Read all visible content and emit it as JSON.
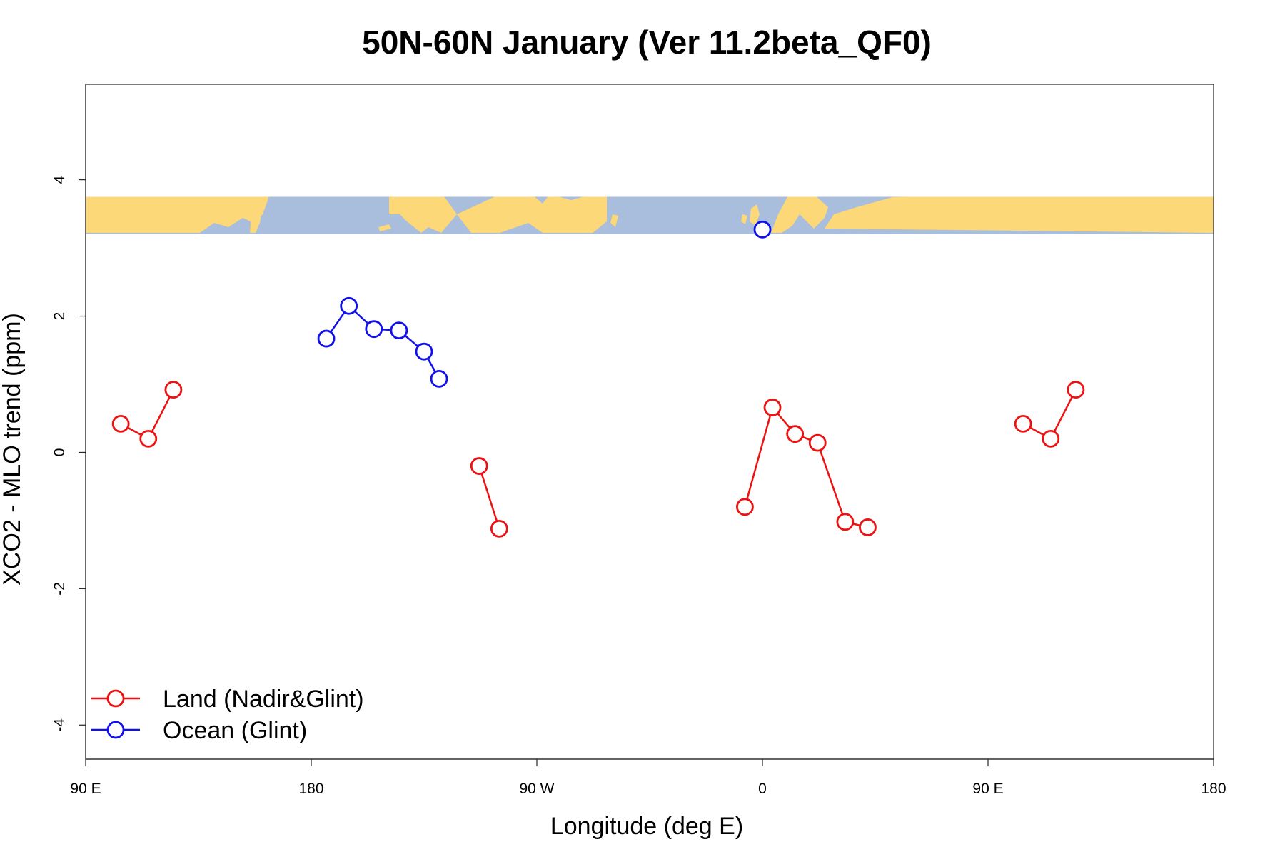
{
  "chart_data": {
    "type": "line",
    "title": "50N-60N January (Ver 11.2beta_QF0)",
    "xlabel": "Longitude (deg E)",
    "ylabel": "XCO2 - MLO trend (ppm)",
    "xlim": [
      90,
      540
    ],
    "ylim": [
      -4.5,
      5.4
    ],
    "x_ticks": [
      {
        "value": 90,
        "label": "90 E"
      },
      {
        "value": 180,
        "label": "180"
      },
      {
        "value": 270,
        "label": "90 W"
      },
      {
        "value": 360,
        "label": "0"
      },
      {
        "value": 450,
        "label": "90 E"
      },
      {
        "value": 540,
        "label": "180"
      }
    ],
    "y_ticks": [
      {
        "value": 4,
        "label": "4"
      },
      {
        "value": 2,
        "label": "2"
      },
      {
        "value": 0,
        "label": "0"
      },
      {
        "value": -2,
        "label": "-2"
      },
      {
        "value": -4,
        "label": "-4"
      }
    ],
    "map_band": {
      "y_from": 3.2,
      "y_to": 3.75,
      "ocean_color": "#a9bddd",
      "land_color": "#fcd878"
    },
    "series": [
      {
        "name": "Land (Nadir&Glint)",
        "color": "#ee1111",
        "segments": [
          [
            [
              104,
              0.42
            ],
            [
              115,
              0.2
            ],
            [
              125,
              0.92
            ]
          ],
          [
            [
              247,
              -0.2
            ],
            [
              255,
              -1.12
            ]
          ],
          [
            [
              353,
              -0.8
            ],
            [
              364,
              0.66
            ],
            [
              373,
              0.27
            ],
            [
              382,
              0.14
            ],
            [
              393,
              -1.02
            ],
            [
              402,
              -1.1
            ]
          ],
          [
            [
              464,
              0.42
            ],
            [
              475,
              0.2
            ],
            [
              485,
              0.92
            ]
          ]
        ]
      },
      {
        "name": "Ocean (Glint)",
        "color": "#1111ee",
        "segments": [
          [
            [
              186,
              1.67
            ],
            [
              195,
              2.15
            ],
            [
              205,
              1.81
            ],
            [
              215,
              1.79
            ],
            [
              225,
              1.48
            ],
            [
              231,
              1.08
            ]
          ],
          [
            [
              360,
              3.27
            ]
          ]
        ]
      }
    ],
    "legend": {
      "position": "bottom-left",
      "entries": [
        "Land (Nadir&Glint)",
        "Ocean (Glint)"
      ]
    }
  }
}
